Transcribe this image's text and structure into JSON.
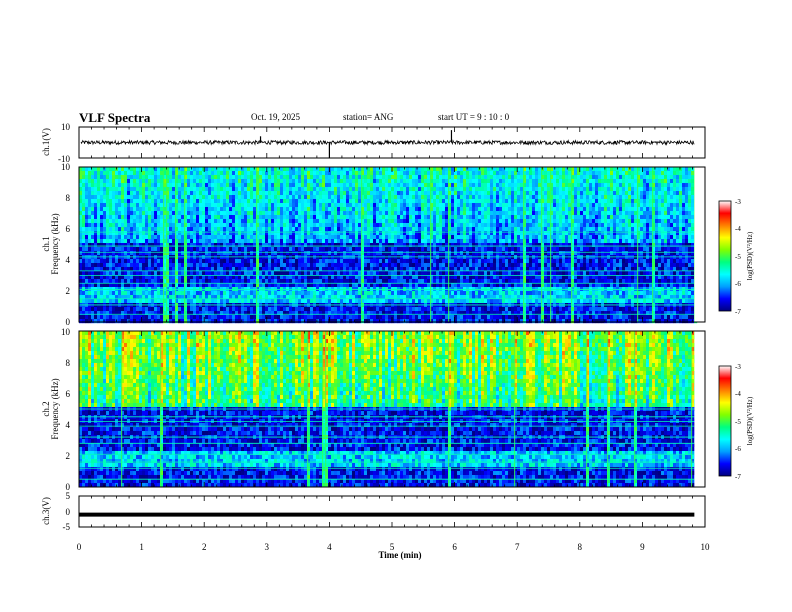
{
  "header": {
    "title": "VLF Spectra",
    "date": "Oct. 19, 2025",
    "station": "station= ANG",
    "start_ut": "start  UT =   9  : 10 : 0"
  },
  "chart_data": [
    {
      "type": "line",
      "name": "ch1-waveform",
      "ylabel": "ch.1(V)",
      "ylim": [
        -10,
        10
      ],
      "yticks": [
        "10",
        "-10"
      ],
      "baseline": 0,
      "noise_amplitude": 2.5,
      "spikes": [
        {
          "x": 4.0,
          "value": -10
        },
        {
          "x": 5.95,
          "value": 8
        },
        {
          "x": 2.9,
          "value": 4
        }
      ]
    },
    {
      "type": "heatmap",
      "name": "ch1-spectrogram",
      "ylabel_line1": "ch.1",
      "ylabel_line2": "Frequency (kHz)",
      "ylim": [
        0,
        10
      ],
      "yticks": [
        "0",
        "2",
        "4",
        "6",
        "8",
        "10"
      ],
      "xlim": [
        0,
        9.83
      ],
      "upper_band_intensity": 0.5,
      "lines_khz": [
        0.5,
        1.1,
        1.5,
        2.1,
        2.5,
        3.0,
        3.3,
        4.2,
        4.5,
        4.9,
        5.8
      ]
    },
    {
      "type": "heatmap",
      "name": "ch2-spectrogram",
      "ylabel_line1": "ch.2",
      "ylabel_line2": "Frequency (kHz)",
      "ylim": [
        0,
        10
      ],
      "yticks": [
        "0",
        "2",
        "4",
        "6",
        "8",
        "10"
      ],
      "xlim": [
        0,
        9.83
      ],
      "upper_band_intensity": 0.78,
      "lines_khz": [
        0.5,
        1.2,
        1.6,
        2.1,
        2.8,
        3.2,
        3.9,
        4.2,
        4.5,
        5.0
      ]
    },
    {
      "type": "line",
      "name": "ch3-waveform",
      "ylabel": "ch.3(V)",
      "ylim": [
        -5,
        5
      ],
      "yticks": [
        "5",
        "0",
        "-5"
      ],
      "baseline": -1,
      "noise_amplitude": 0
    }
  ],
  "x_axis": {
    "label": "Time (min)",
    "range": [
      0,
      10
    ],
    "ticks": [
      "0",
      "1",
      "2",
      "3",
      "4",
      "5",
      "6",
      "7",
      "8",
      "9",
      "10"
    ]
  },
  "colorbar": {
    "label": "log(PSD)(V²/Hz)",
    "range": [
      -7,
      -3
    ],
    "ticks": [
      "-3",
      "-4",
      "-5",
      "-6",
      "-7"
    ],
    "stops": [
      "#00007f",
      "#0000ff",
      "#00a0ff",
      "#00ffff",
      "#00ff80",
      "#80ff00",
      "#ffff00",
      "#ff8000",
      "#ff0000",
      "#ffffff"
    ]
  }
}
